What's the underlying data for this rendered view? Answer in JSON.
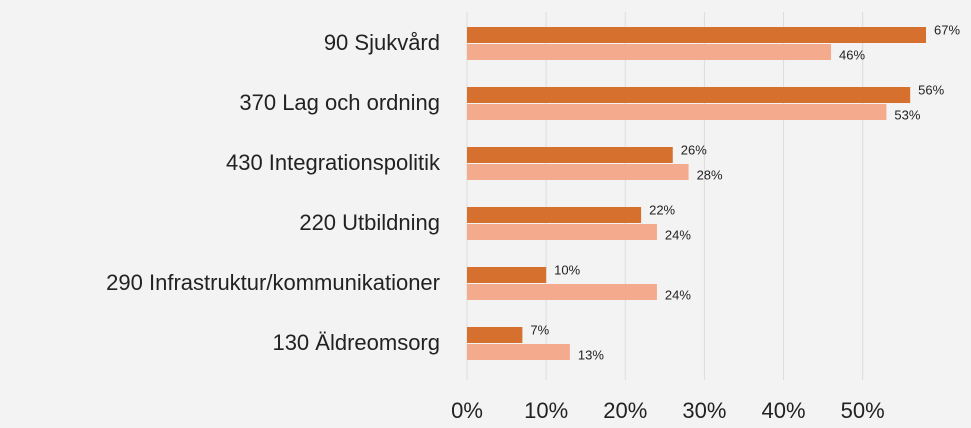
{
  "chart_data": {
    "type": "bar",
    "orientation": "horizontal",
    "categories": [
      "90 Sjukvård",
      "370 Lag och ordning",
      "430 Integrationspolitik",
      "220 Utbildning",
      "290 Infrastruktur/kommunikationer",
      "130 Äldreomsorg"
    ],
    "series": [
      {
        "color": "#d5702e",
        "values": [
          67,
          56,
          26,
          22,
          10,
          7
        ],
        "value_labels": [
          "67%",
          "56%",
          "26%",
          "22%",
          "10%",
          "7%"
        ]
      },
      {
        "color": "#f4aa8c",
        "values": [
          46,
          53,
          28,
          24,
          24,
          13
        ],
        "value_labels": [
          "46%",
          "53%",
          "28%",
          "24%",
          "24%",
          "13%"
        ]
      }
    ],
    "xlim": [
      0,
      58
    ],
    "xticks": [
      {
        "value": 0,
        "label": "0%"
      },
      {
        "value": 10,
        "label": "10%"
      },
      {
        "value": 20,
        "label": "20%"
      },
      {
        "value": 30,
        "label": "30%"
      },
      {
        "value": 40,
        "label": "40%"
      },
      {
        "value": 50,
        "label": "50%"
      }
    ],
    "grid": true
  }
}
